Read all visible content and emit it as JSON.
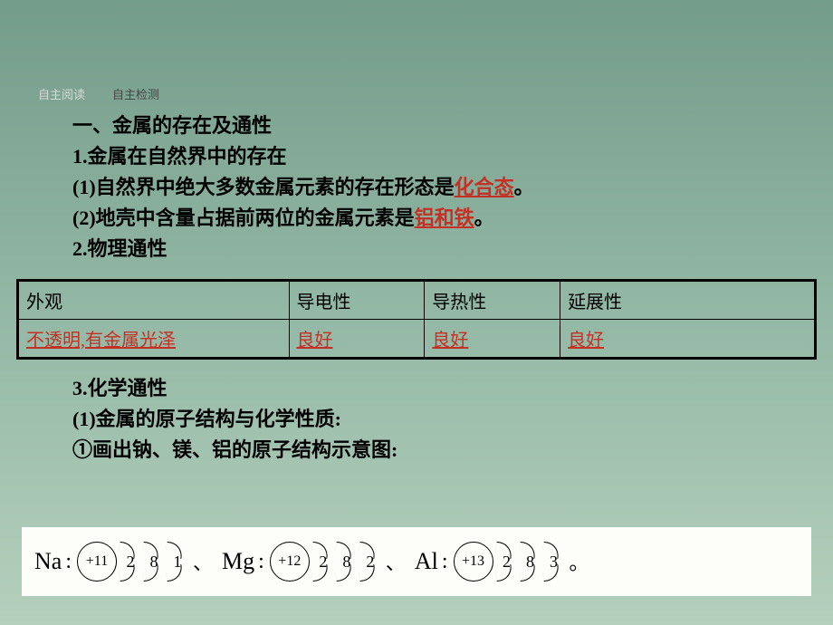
{
  "tabs": {
    "tab1": "自主阅读",
    "tab2": "自主检测"
  },
  "lines": {
    "h1": "一、金属的存在及通性",
    "l1a": "1",
    "l1b": ".金属在自然界中的存在",
    "l2a": "(1)自然界中绝大多数金属元素的存在形态是",
    "l2h": "化合态",
    "l2b": "。",
    "l3a": "(2)地壳中含量占据前两位的金属元素是",
    "l3h": "铝和铁",
    "l3b": "。",
    "l4a": "2",
    "l4b": ".物理通性",
    "l5a": "3",
    "l5b": ".化学通性",
    "l6": "(1)金属的原子结构与化学性质:",
    "l7": "①画出钠、镁、铝的原子结构示意图:"
  },
  "table": {
    "headers": {
      "c1": "外观",
      "c2": "导电性",
      "c3": "导热性",
      "c4": "延展性"
    },
    "row": {
      "c1": "不透明,有金属光泽",
      "c2": "良好",
      "c3": "良好",
      "c4": "良好"
    },
    "widths": {
      "c1": "34%",
      "c2": "17%",
      "c3": "17%",
      "c4": "32%"
    }
  },
  "atoms": {
    "na": {
      "sym": "Na",
      "nuc": "+11",
      "shells": [
        "2",
        "8",
        "1"
      ]
    },
    "mg": {
      "sym": "Mg",
      "nuc": "+12",
      "shells": [
        "2",
        "8",
        "2"
      ]
    },
    "al": {
      "sym": "Al",
      "nuc": "+13",
      "shells": [
        "2",
        "8",
        "3"
      ]
    },
    "sep": "、",
    "period": "。",
    "colon": ":"
  },
  "colors": {
    "highlight": "#c63024",
    "bg_top": "#749c8a",
    "bg_bottom": "#b5d0bd",
    "diagram_bg": "#fdfdfa"
  }
}
